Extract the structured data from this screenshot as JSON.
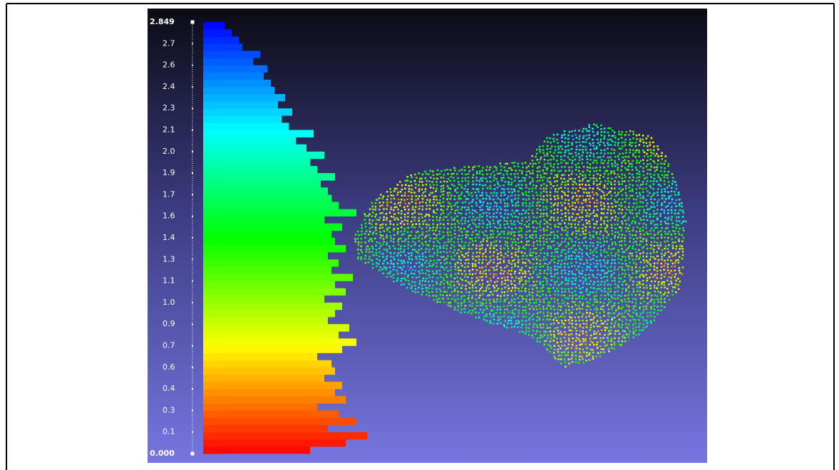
{
  "chart_data": {
    "type": "histogram",
    "orientation": "vertical-values",
    "colormap": [
      "#ff0000",
      "#ffff00",
      "#00ff00",
      "#00ffff",
      "#0000ff"
    ],
    "ylim": [
      0,
      2.849
    ],
    "yticks": [
      {
        "value": 0,
        "label": "0.000"
      },
      {
        "value": 0.14245,
        "label": "0.1"
      },
      {
        "value": 0.2849,
        "label": "0.3"
      },
      {
        "value": 0.42735,
        "label": "0.4"
      },
      {
        "value": 0.5698,
        "label": "0.6"
      },
      {
        "value": 0.71225,
        "label": "0.7"
      },
      {
        "value": 0.8547,
        "label": "0.9"
      },
      {
        "value": 0.99715,
        "label": "1.0"
      },
      {
        "value": 1.1396,
        "label": "1.1"
      },
      {
        "value": 1.28205,
        "label": "1.3"
      },
      {
        "value": 1.4245,
        "label": "1.4"
      },
      {
        "value": 1.56695,
        "label": "1.6"
      },
      {
        "value": 1.7094,
        "label": "1.7"
      },
      {
        "value": 1.85185,
        "label": "1.9"
      },
      {
        "value": 1.9943,
        "label": "2.0"
      },
      {
        "value": 2.13675,
        "label": "2.1"
      },
      {
        "value": 2.2792,
        "label": "2.3"
      },
      {
        "value": 2.42165,
        "label": "2.4"
      },
      {
        "value": 2.5641,
        "label": "2.6"
      },
      {
        "value": 2.70655,
        "label": "2.7"
      },
      {
        "value": 2.849,
        "label": "2.849"
      }
    ],
    "xlim": [
      0,
      240
    ],
    "bins": [
      0,
      0.047,
      0.095,
      0.142,
      0.19,
      0.237,
      0.285,
      0.332,
      0.38,
      0.427,
      0.475,
      0.522,
      0.57,
      0.617,
      0.665,
      0.712,
      0.76,
      0.807,
      0.855,
      0.902,
      0.95,
      0.997,
      1.045,
      1.092,
      1.14,
      1.187,
      1.235,
      1.282,
      1.33,
      1.377,
      1.425,
      1.472,
      1.52,
      1.567,
      1.614,
      1.662,
      1.709,
      1.757,
      1.804,
      1.852,
      1.899,
      1.947,
      1.994,
      2.042,
      2.089,
      2.137,
      2.184,
      2.232,
      2.279,
      2.327,
      2.374,
      2.422,
      2.469,
      2.517,
      2.564,
      2.612,
      2.659,
      2.707,
      2.754,
      2.802,
      2.849
    ],
    "values": [
      150,
      200,
      230,
      175,
      215,
      190,
      160,
      200,
      185,
      195,
      170,
      185,
      180,
      160,
      195,
      215,
      190,
      205,
      175,
      185,
      195,
      170,
      200,
      185,
      210,
      180,
      190,
      175,
      200,
      185,
      180,
      195,
      170,
      215,
      190,
      180,
      175,
      165,
      185,
      160,
      150,
      170,
      145,
      130,
      155,
      120,
      110,
      125,
      105,
      115,
      100,
      95,
      85,
      90,
      70,
      80,
      55,
      50,
      40,
      30
    ]
  }
}
